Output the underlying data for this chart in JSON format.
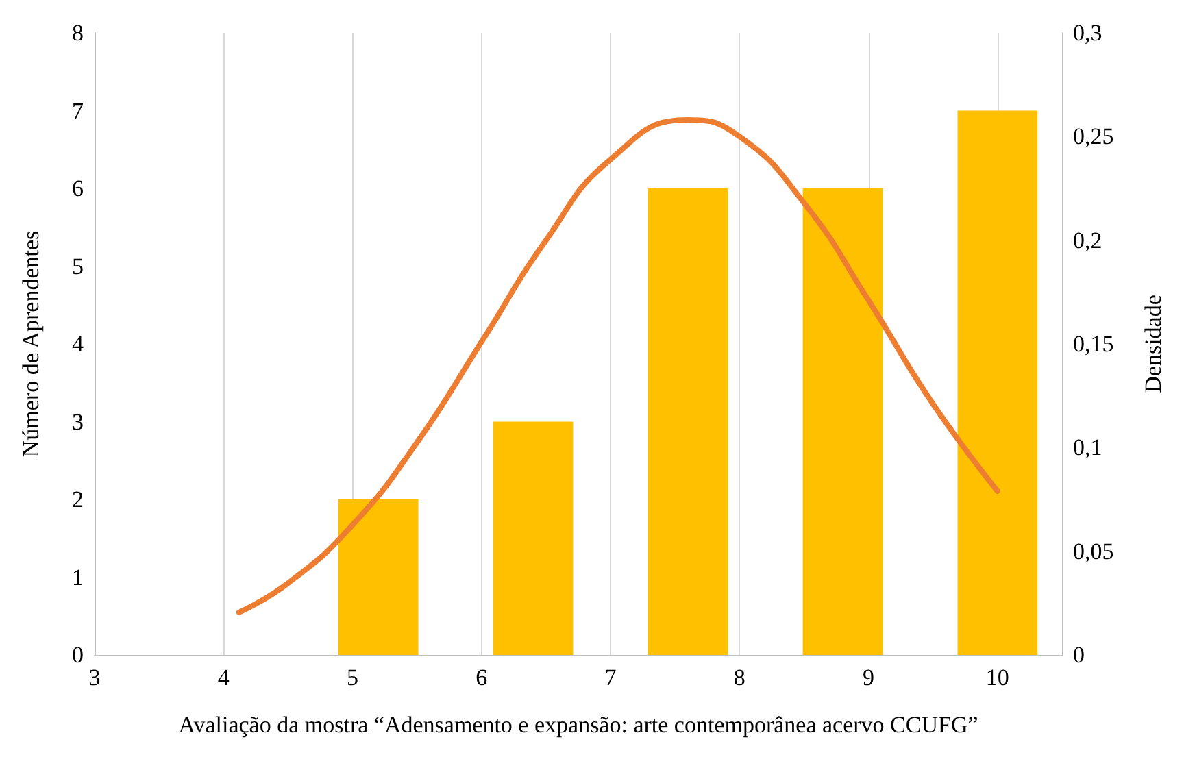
{
  "chart_data": {
    "type": "bar",
    "xlabel": "Avaliação da mostra “Adensamento e expansão: arte contemporânea acervo CCUFG”",
    "ylabel": "Número de Aprendentes",
    "y2label": "Densidade",
    "x": [
      5.2,
      6.4,
      7.6,
      8.8,
      10
    ],
    "series": [
      {
        "color": "#ffc000",
        "values": [
          2,
          3,
          6,
          6,
          7
        ]
      },
      {
        "type": "line",
        "axis": "y2",
        "color": "#ed7d31",
        "x": [
          4.12,
          4.5,
          5,
          5.5,
          6,
          6.5,
          7,
          7.6,
          8,
          8.5,
          9,
          9.5,
          10
        ],
        "values": [
          0.0205,
          0.0346,
          0.0627,
          0.1025,
          0.151,
          0.2,
          0.239,
          0.258,
          0.25,
          0.218,
          0.171,
          0.121,
          0.079
        ]
      }
    ],
    "xlim": [
      3,
      10.5
    ],
    "xticks": [
      3,
      4,
      5,
      6,
      7,
      8,
      9,
      10
    ],
    "ylim": [
      0,
      8
    ],
    "yticks": [
      0,
      1,
      2,
      3,
      4,
      5,
      6,
      7,
      8
    ],
    "y2lim": [
      0,
      0.3
    ],
    "y2ticks": [
      0,
      {
        "value": 0.05,
        "label": "0,05"
      },
      {
        "value": 0.1,
        "label": "0,1"
      },
      {
        "value": 0.15,
        "label": "0,15"
      },
      {
        "value": 0.2,
        "label": "0,2"
      },
      {
        "value": 0.25,
        "label": "0,25"
      },
      {
        "value": 0.3,
        "label": "0,3"
      }
    ],
    "grid": "x",
    "marker": "none",
    "line_style": "solid"
  }
}
